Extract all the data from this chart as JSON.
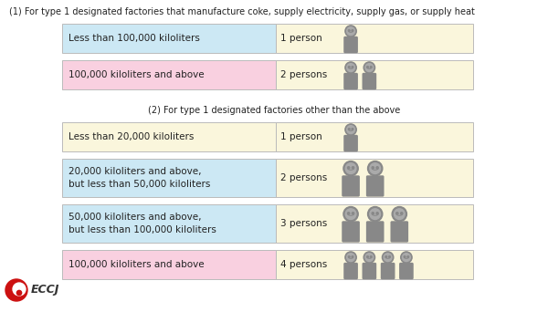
{
  "background_color": "#ffffff",
  "section1_title": "(1) For type 1 designated factories that manufacture coke, supply electricity, supply gas, or supply heat",
  "section2_title": "(2) For type 1 designated factories other than the above",
  "section1_rows": [
    {
      "label": "Less than 100,000 kiloliters",
      "persons_text": "1 person",
      "num_persons": 1,
      "label_color": "#cce8f4",
      "row_color": "#faf6dc"
    },
    {
      "label": "100,000 kiloliters and above",
      "persons_text": "2 persons",
      "num_persons": 2,
      "label_color": "#f9d0e0",
      "row_color": "#faf6dc"
    }
  ],
  "section2_rows": [
    {
      "label": "Less than 20,000 kiloliters",
      "persons_text": "1 person",
      "num_persons": 1,
      "label_color": "#faf6dc",
      "row_color": "#faf6dc"
    },
    {
      "label": "20,000 kiloliters and above,\nbut less than 50,000 kiloliters",
      "persons_text": "2 persons",
      "num_persons": 2,
      "label_color": "#cce8f4",
      "row_color": "#faf6dc"
    },
    {
      "label": "50,000 kiloliters and above,\nbut less than 100,000 kiloliters",
      "persons_text": "3 persons",
      "num_persons": 3,
      "label_color": "#cce8f4",
      "row_color": "#faf6dc"
    },
    {
      "label": "100,000 kiloliters and above",
      "persons_text": "4 persons",
      "num_persons": 4,
      "label_color": "#f9d0e0",
      "row_color": "#faf6dc"
    }
  ],
  "person_color": "#888888",
  "person_face_color": "#aaaaaa",
  "eccj_text": "ECCJ",
  "eccj_color": "#333333",
  "title_fontsize": 7.0,
  "label_fontsize": 7.5,
  "persons_fontsize": 7.5,
  "border_color": "#bbbbbb"
}
